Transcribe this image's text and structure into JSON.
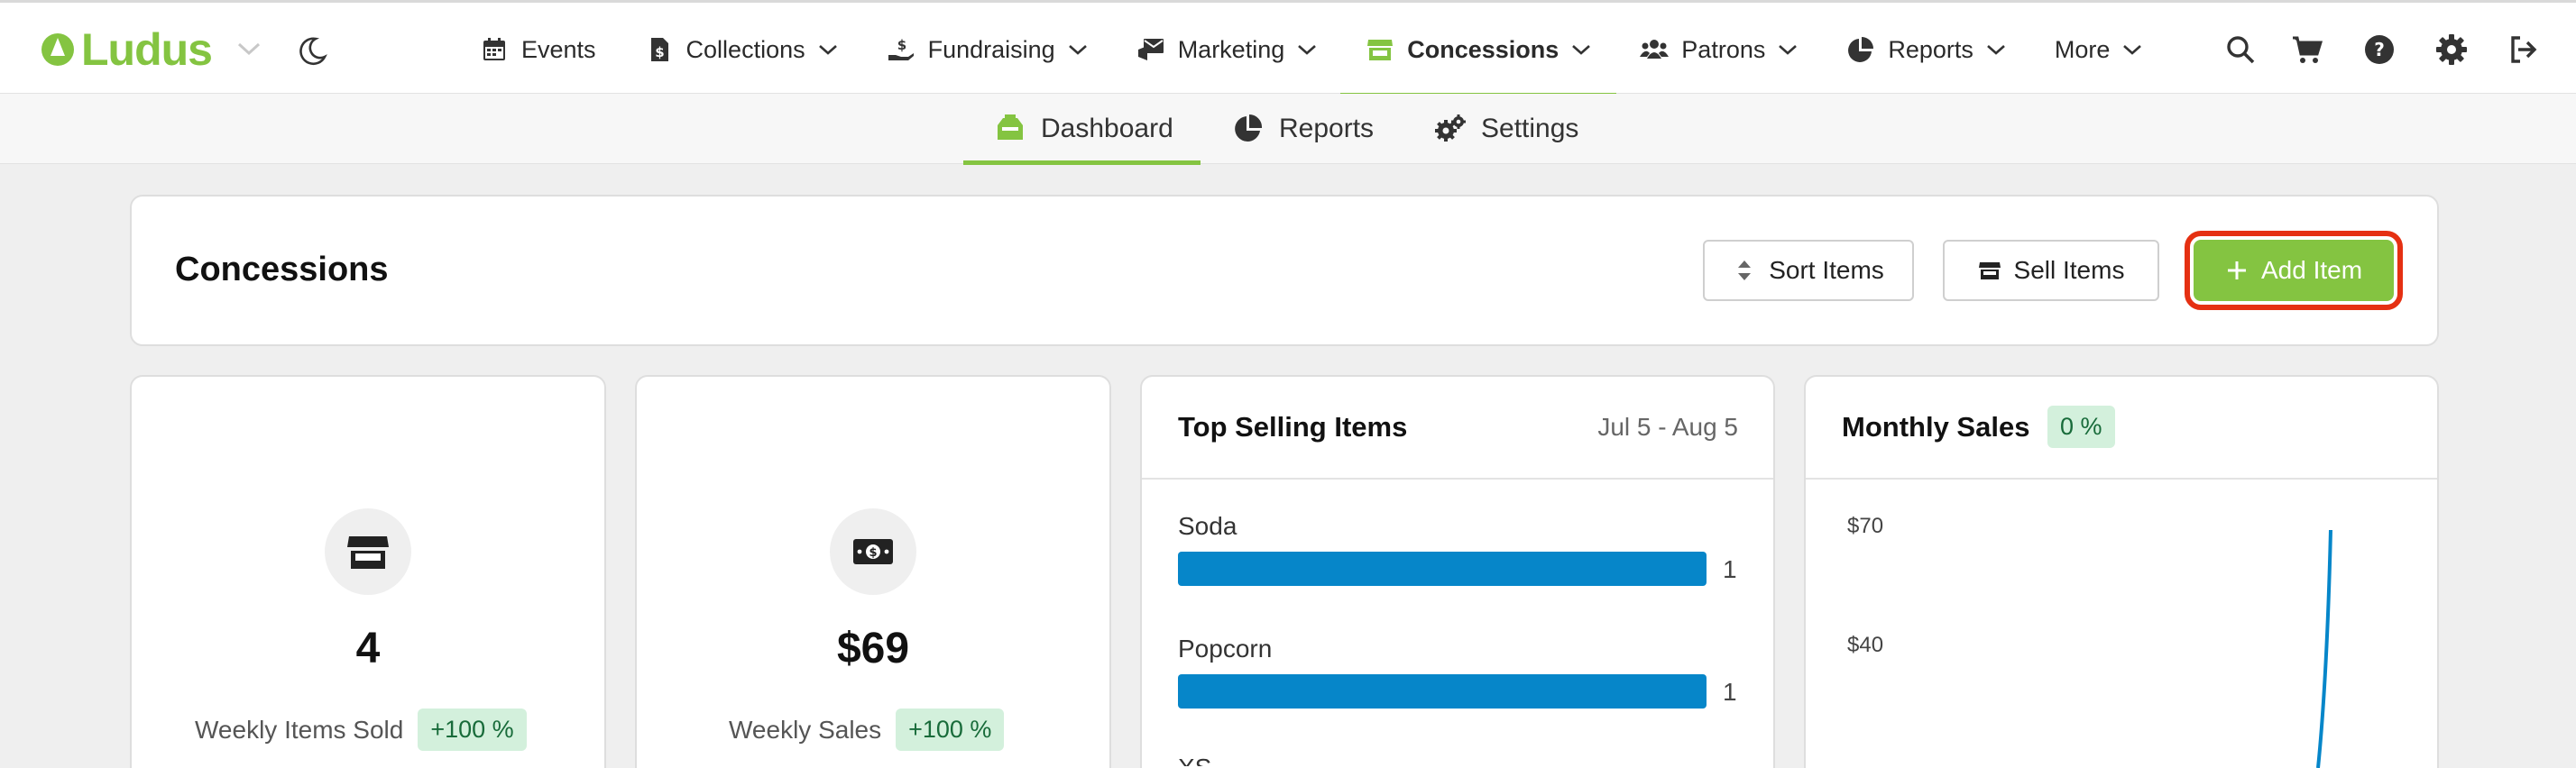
{
  "brand": {
    "name": "Ludus",
    "accent": "#84c441"
  },
  "nav": {
    "items": [
      {
        "label": "Events",
        "icon": "calendar-icon"
      },
      {
        "label": "Collections",
        "icon": "file-dollar-icon"
      },
      {
        "label": "Fundraising",
        "icon": "hand-dollar-icon"
      },
      {
        "label": "Marketing",
        "icon": "mail-bullhorn-icon"
      },
      {
        "label": "Concessions",
        "icon": "store-icon",
        "active": true
      },
      {
        "label": "Patrons",
        "icon": "users-icon"
      },
      {
        "label": "Reports",
        "icon": "pie-chart-icon"
      },
      {
        "label": "More",
        "icon": ""
      }
    ],
    "utilities": [
      "search-icon",
      "cart-icon",
      "help-icon",
      "gear-icon",
      "logout-icon"
    ]
  },
  "subnav": {
    "tabs": [
      {
        "label": "Dashboard",
        "icon": "cash-register-icon",
        "active": true
      },
      {
        "label": "Reports",
        "icon": "pie-chart-icon"
      },
      {
        "label": "Settings",
        "icon": "gears-icon"
      }
    ]
  },
  "header": {
    "title": "Concessions",
    "sort_label": "Sort Items",
    "sell_label": "Sell Items",
    "add_label": "Add Item"
  },
  "stats": [
    {
      "value": "4",
      "label": "Weekly Items Sold",
      "badge": "+100 %",
      "icon": "store-icon"
    },
    {
      "value": "$69",
      "label": "Weekly Sales",
      "badge": "+100 %",
      "icon": "money-bill-icon"
    }
  ],
  "top_selling": {
    "title": "Top Selling Items",
    "range": "Jul 5 - Aug 5",
    "items": [
      {
        "name": "Soda",
        "count": "1",
        "fraction": 1.0
      },
      {
        "name": "Popcorn",
        "count": "1",
        "fraction": 1.0
      },
      {
        "name": "XS",
        "count": "",
        "fraction": 0
      }
    ]
  },
  "monthly_sales": {
    "title": "Monthly Sales",
    "badge": "0 %",
    "y_ticks": [
      "$70",
      "$40"
    ],
    "line_color": "#0686c9"
  }
}
